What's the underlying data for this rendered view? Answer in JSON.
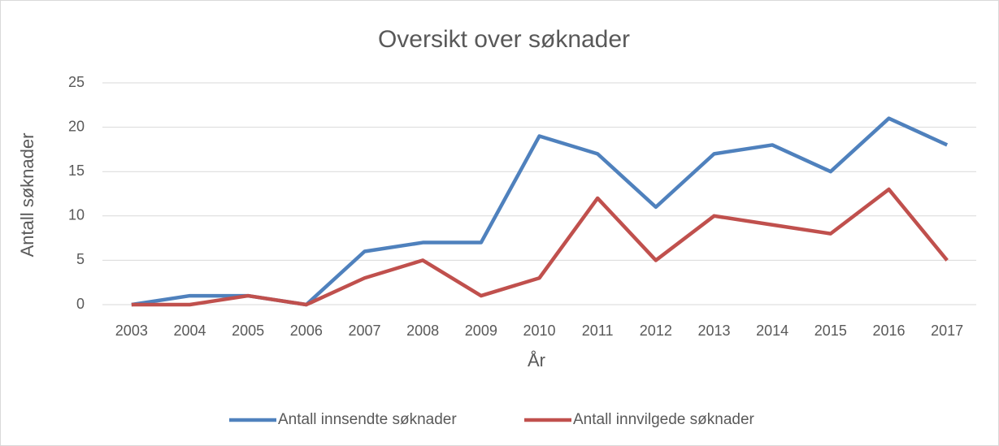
{
  "chart_data": {
    "type": "line",
    "title": "Oversikt over søknader",
    "x_label": "År",
    "y_label": "Antall søknader",
    "categories": [
      "2003",
      "2004",
      "2005",
      "2006",
      "2007",
      "2008",
      "2009",
      "2010",
      "2011",
      "2012",
      "2013",
      "2014",
      "2015",
      "2016",
      "2017"
    ],
    "series": [
      {
        "name": "Antall innsendte søknader",
        "color": "#4f81bd",
        "values": [
          0,
          1,
          1,
          0,
          6,
          7,
          7,
          19,
          17,
          11,
          17,
          18,
          15,
          21,
          18
        ]
      },
      {
        "name": "Antall innvilgede søknader",
        "color": "#c0504d",
        "values": [
          0,
          0,
          1,
          0,
          3,
          5,
          1,
          3,
          12,
          5,
          10,
          9,
          8,
          13,
          5
        ]
      }
    ],
    "ylim": [
      0,
      25
    ],
    "yticks": [
      0,
      5,
      10,
      15,
      20,
      25
    ],
    "grid": true,
    "legend": "bottom"
  }
}
